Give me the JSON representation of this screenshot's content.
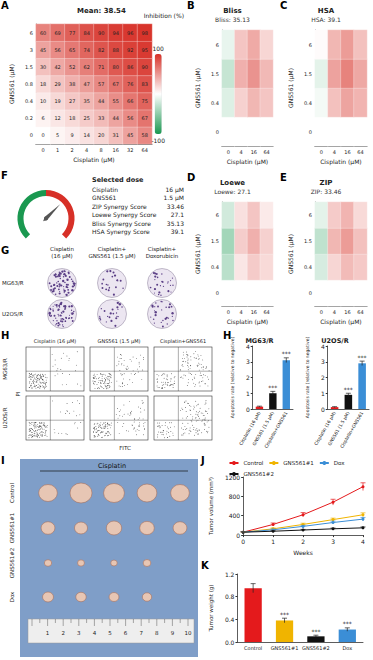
{
  "chart_data": [
    {
      "panel": "A",
      "type": "heatmap",
      "title": "Mean: 38.54",
      "x_label": "Cisplatin (μM)",
      "y_label": "GNS561 (μM)",
      "categories": [
        "0",
        "1",
        "2",
        "4",
        "8",
        "16",
        "32",
        "64"
      ],
      "y_categories": [
        "0",
        "0.2",
        "0.4",
        "0.8",
        "1.5",
        "3",
        "6"
      ],
      "cells": [
        [
          0,
          5,
          9,
          14,
          20,
          31,
          45,
          58
        ],
        [
          6,
          12,
          18,
          25,
          33,
          44,
          56,
          67
        ],
        [
          10,
          19,
          27,
          35,
          44,
          55,
          66,
          75
        ],
        [
          18,
          29,
          38,
          47,
          57,
          67,
          76,
          83
        ],
        [
          30,
          42,
          52,
          62,
          71,
          80,
          86,
          90
        ],
        [
          45,
          56,
          65,
          74,
          82,
          88,
          92,
          95
        ],
        [
          60,
          69,
          77,
          84,
          90,
          94,
          96,
          98
        ]
      ],
      "colorbar": {
        "label": "Inhibition (%)",
        "range": [
          -100,
          100
        ],
        "ticks": [
          -100,
          100
        ]
      },
      "data_labels": true
    },
    {
      "panel": "B",
      "type": "heatmap",
      "title": "Bliss",
      "subtitle": "Bliss: 35.13",
      "x_label": "Cisplatin (μM)",
      "y_label": "GNS561 (μM)",
      "categories": [
        "0",
        "4",
        "16",
        "64"
      ],
      "y_categories": [
        "0",
        "0.4",
        "1.5",
        "6"
      ],
      "cells": [
        [
          0,
          0,
          0,
          0
        ],
        [
          -15,
          22,
          35,
          28
        ],
        [
          -25,
          38,
          52,
          34
        ],
        [
          -10,
          28,
          41,
          20
        ]
      ]
    },
    {
      "panel": "C",
      "type": "heatmap",
      "title": "HSA",
      "subtitle": "HSA: 39.1",
      "x_label": "Cisplatin (μM)",
      "y_label": "GNS561 (μM)",
      "categories": [
        "0",
        "4",
        "16",
        "64"
      ],
      "y_categories": [
        "0",
        "0.4",
        "1.5",
        "6"
      ],
      "cells": [
        [
          0,
          0,
          0,
          0
        ],
        [
          -5,
          30,
          44,
          36
        ],
        [
          -12,
          45,
          60,
          42
        ],
        [
          2,
          35,
          48,
          30
        ]
      ]
    },
    {
      "panel": "D",
      "type": "heatmap",
      "title": "Loewe",
      "subtitle": "Loewe: 27.1",
      "x_label": "Cisplatin (μM)",
      "y_label": "GNS561 (μM)",
      "categories": [
        "0",
        "4",
        "16",
        "64"
      ],
      "y_categories": [
        "0",
        "0.4",
        "1.5",
        "6"
      ],
      "cells": [
        [
          0,
          0,
          0,
          0
        ],
        [
          -30,
          12,
          25,
          18
        ],
        [
          -40,
          24,
          38,
          22
        ],
        [
          -20,
          15,
          28,
          10
        ]
      ]
    },
    {
      "panel": "E",
      "type": "heatmap",
      "title": "ZIP",
      "subtitle": "ZIP: 33.46",
      "x_label": "Cisplatin (μM)",
      "y_label": "GNS561 (μM)",
      "categories": [
        "0",
        "4",
        "16",
        "64"
      ],
      "y_categories": [
        "0",
        "0.4",
        "1.5",
        "6"
      ],
      "cells": [
        [
          0,
          0,
          0,
          0
        ],
        [
          -18,
          20,
          33,
          26
        ],
        [
          -28,
          35,
          48,
          30
        ],
        [
          -12,
          25,
          36,
          18
        ]
      ]
    },
    {
      "panel": "F",
      "type": "gauge",
      "title": "Selected dose",
      "value": 33.46,
      "range": [
        -100,
        100
      ],
      "tick_labels": false,
      "rows": [
        [
          "Cisplatin",
          "16 μM"
        ],
        [
          "GNS561",
          "1.5 μM"
        ],
        [
          "ZIP Synergy Score",
          "33.46"
        ],
        [
          "Loewe Synergy Score",
          "27.1"
        ],
        [
          "Bliss Synergy Score",
          "35.13"
        ],
        [
          "HSA Synergy Score",
          "39.1"
        ]
      ]
    },
    {
      "panel": "H",
      "type": "bar",
      "title": "MG63/R",
      "y_label": "Apoptosis rate (relative to negative)",
      "categories": [
        "Cisplatin (16 μM)",
        "GNS561 (1.5 μM)",
        "Cisplatin+GNS561"
      ],
      "values": [
        0.15,
        1.0,
        3.1
      ],
      "errors": [
        0.03,
        0.12,
        0.15
      ],
      "colors": [
        "#e41a1c",
        "#111111",
        "#3b8ed6"
      ],
      "annotations": [
        null,
        "***",
        "***"
      ],
      "ylim": [
        0,
        4
      ],
      "yticks": [
        0,
        1,
        2,
        3,
        4
      ],
      "grid": false
    },
    {
      "type": "bar",
      "title": "U2OS/R",
      "y_label": "Apoptosis rate (relative to negative)",
      "categories": [
        "Cisplatin (16 μM)",
        "GNS561 (1.5 μM)",
        "Cisplatin+GNS561"
      ],
      "values": [
        0.12,
        0.9,
        2.9
      ],
      "errors": [
        0.03,
        0.1,
        0.14
      ],
      "colors": [
        "#e41a1c",
        "#111111",
        "#3b8ed6"
      ],
      "annotations": [
        null,
        "***",
        "***"
      ],
      "ylim": [
        0,
        4
      ],
      "yticks": [
        0,
        1,
        2,
        3,
        4
      ],
      "grid": false
    },
    {
      "panel": "J",
      "type": "line",
      "x": [
        0,
        1,
        2,
        3,
        4
      ],
      "x_label": "Weeks",
      "y_label": "Tumor volume (mm³)",
      "xlim": [
        0,
        4
      ],
      "xticks": [
        0,
        1,
        2,
        3,
        4
      ],
      "ylim": [
        0,
        1200
      ],
      "yticks": [
        0,
        400,
        800,
        1200
      ],
      "grid": false,
      "legend": "top",
      "marker": "circle",
      "series": [
        {
          "name": "Control",
          "color": "#e41a1c",
          "values": [
            60,
            220,
            420,
            680,
            1000
          ],
          "errors": [
            10,
            30,
            45,
            60,
            80
          ]
        },
        {
          "name": "GNS561#1",
          "color": "#f0b400",
          "values": [
            60,
            130,
            220,
            320,
            420
          ],
          "errors": [
            8,
            18,
            25,
            30,
            40
          ]
        },
        {
          "name": "Dox",
          "color": "#3b8ed6",
          "values": [
            60,
            110,
            180,
            260,
            330
          ],
          "errors": [
            8,
            15,
            20,
            28,
            35
          ]
        },
        {
          "name": "GNS561#2",
          "color": "#111111",
          "values": [
            60,
            80,
            105,
            130,
            150
          ],
          "errors": [
            6,
            10,
            12,
            15,
            18
          ]
        }
      ]
    },
    {
      "panel": "K",
      "type": "bar",
      "y_label": "Tumor weight (g)",
      "categories": [
        "Control",
        "GNS561#1",
        "GNS561#2",
        "Dox"
      ],
      "values": [
        0.95,
        0.38,
        0.1,
        0.22
      ],
      "errors": [
        0.08,
        0.04,
        0.02,
        0.03
      ],
      "colors": [
        "#e41a1c",
        "#f0b400",
        "#111111",
        "#3b8ed6"
      ],
      "annotations": [
        null,
        "***",
        "***",
        "***"
      ],
      "ylim": [
        0,
        1.2
      ],
      "yticks": [
        {
          "value": 0,
          "label": "0.0"
        },
        0.4,
        0.8,
        1.2
      ],
      "grid": false
    }
  ],
  "colony_images": {
    "panel": "G",
    "columns": [
      [
        "Cisplatin",
        "(16 μM)"
      ],
      [
        "Cisplatin+",
        "GNS561 (1.5 μM)"
      ],
      [
        "Cisplatin+",
        "Doxorubicin"
      ]
    ],
    "rows": [
      "MG63/R",
      "U2OS/R"
    ]
  },
  "flow_plots": {
    "panel": "H",
    "columns": [
      "Cisplatin (16 μM)",
      "GNS561 (1.5 μM)",
      "Cisplatin+GNS561"
    ],
    "rows": [
      "MG63/R",
      "U2OS/R"
    ],
    "x_label": "FITC",
    "y_label": "PI"
  },
  "tumor_photo": {
    "panel": "I",
    "title": "Cisplatin",
    "rows": [
      "Control",
      "GNS561#1",
      "GNS561#2",
      "Dox"
    ],
    "ruler": [
      1,
      2,
      3,
      4,
      5,
      6,
      7,
      8,
      9,
      10
    ]
  }
}
